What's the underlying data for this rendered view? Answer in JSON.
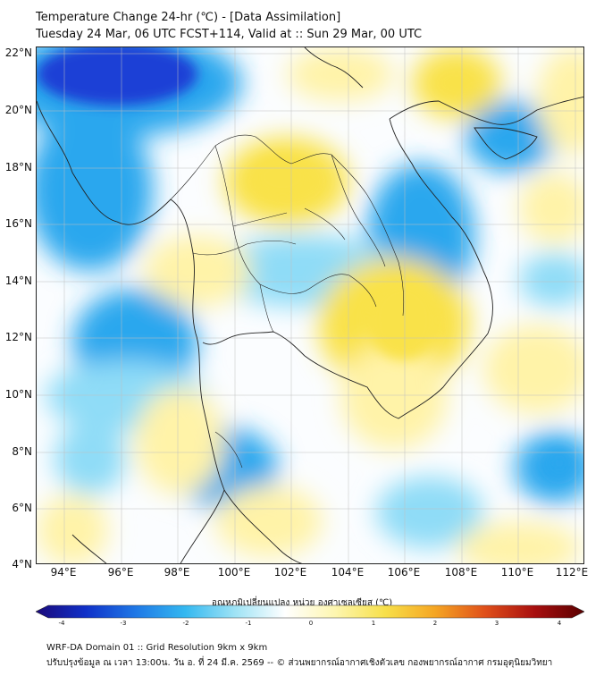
{
  "header": {
    "title_line1": "Temperature Change 24-hr (℃) - [Data Assimilation]",
    "title_line2": "Tuesday 24 Mar, 06 UTC FCST+114, Valid at :: Sun 29 Mar, 00 UTC"
  },
  "map": {
    "lat_labels": [
      "22°N",
      "20°N",
      "18°N",
      "16°N",
      "14°N",
      "12°N",
      "10°N",
      "8°N",
      "6°N",
      "4°N"
    ],
    "lon_labels": [
      "94°E",
      "96°E",
      "98°E",
      "100°E",
      "102°E",
      "104°E",
      "106°E",
      "108°E",
      "110°E",
      "112°E"
    ],
    "field_colors": {
      "strong_cool": "#1a3fd6",
      "cool": "#2aa7ee",
      "light_cool": "#8fdcf7",
      "neutral": "#ffffff",
      "light_warm": "#fff3a8",
      "warm": "#f9e24a",
      "border": "#222222"
    }
  },
  "colorbar": {
    "label": "อุณหภูมิเปลี่ยนแปลง หน่วย องศาเซลเซียส (℃)",
    "ticks": [
      "-4",
      "-3",
      "-2",
      "-1",
      "0",
      "1",
      "2",
      "3",
      "4"
    ],
    "colors": [
      "#1b0a7a",
      "#1030c8",
      "#1f78e6",
      "#34b8f0",
      "#9fe3f5",
      "#ffffff",
      "#fdf6b0",
      "#f7e04a",
      "#f5a623",
      "#e0501a",
      "#a80f0f",
      "#5a0000"
    ]
  },
  "footer": {
    "line1": "WRF-DA Domain 01 :: Grid Resolution 9km x 9km",
    "line2": "ปรับปรุงข้อมูล ณ เวลา 13:00น. วัน อ. ที่ 24 มี.ค. 2569 -- © ส่วนพยากรณ์อากาศเชิงตัวเลข กองพยากรณ์อากาศ กรมอุตุนิยมวิทยา"
  }
}
